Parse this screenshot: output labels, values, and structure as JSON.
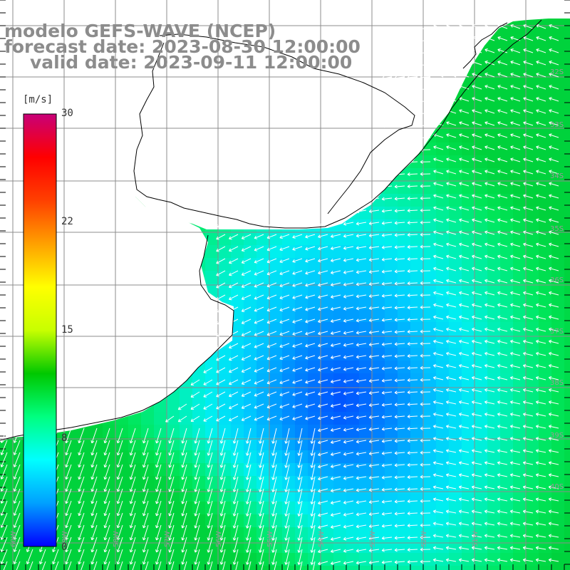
{
  "header": {
    "line1": "modelo GEFS-WAVE (NCEP)",
    "line2": "forecast date: 2023-08-30 12:00:00",
    "line3": "valid date: 2023-09-11 12:00:00"
  },
  "legend": {
    "unit": "[m/s]",
    "ticks": [
      "30",
      "22",
      "15",
      "8",
      "0"
    ],
    "colors": [
      "#0000ff",
      "#00a0ff",
      "#00ffff",
      "#00ff80",
      "#00c800",
      "#c8ff00",
      "#ffff00",
      "#ffa000",
      "#ff4000",
      "#ff0000",
      "#c80078"
    ]
  },
  "map": {
    "lat_labels": [
      "32S",
      "33S",
      "34S",
      "35S",
      "36S",
      "37S",
      "38S",
      "39S",
      "40S"
    ],
    "lon_labels": [
      "60W",
      "59W",
      "58W",
      "57W",
      "56W",
      "55W",
      "54W",
      "53W",
      "52W",
      "51W"
    ],
    "land_color": "#ffffff",
    "grid_color": "#8c8c8c"
  }
}
